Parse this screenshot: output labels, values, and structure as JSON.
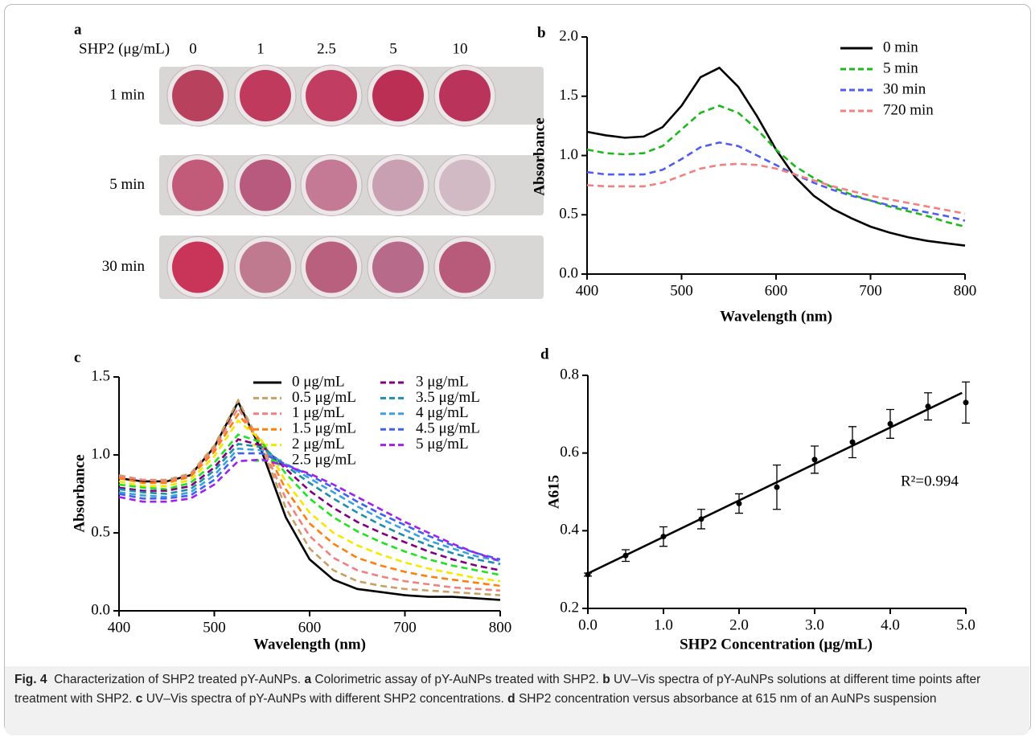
{
  "photo": {
    "panel_label": "a",
    "column_header": "SHP2 (μg/mL)",
    "columns": [
      "0",
      "1",
      "2.5",
      "5",
      "10"
    ],
    "rows": [
      "1 min",
      "5 min",
      "30 min"
    ]
  },
  "chart_data": [
    {
      "type": "line",
      "panel_label": "b",
      "xlabel": "Wavelength (nm)",
      "ylabel": "Absorbance",
      "x": [
        400,
        420,
        440,
        460,
        480,
        500,
        520,
        540,
        560,
        580,
        600,
        620,
        640,
        660,
        680,
        700,
        720,
        740,
        760,
        780,
        800
      ],
      "series": [
        {
          "name": "0 min",
          "color": "#000000",
          "line_style": "solid",
          "values": [
            1.2,
            1.17,
            1.15,
            1.16,
            1.24,
            1.42,
            1.66,
            1.74,
            1.58,
            1.33,
            1.05,
            0.82,
            0.66,
            0.55,
            0.47,
            0.4,
            0.35,
            0.31,
            0.28,
            0.26,
            0.24
          ]
        },
        {
          "name": "5 min",
          "color": "#1db81d",
          "line_style": "dashed",
          "values": [
            1.05,
            1.02,
            1.01,
            1.02,
            1.08,
            1.22,
            1.36,
            1.42,
            1.36,
            1.22,
            1.05,
            0.91,
            0.81,
            0.73,
            0.67,
            0.62,
            0.57,
            0.53,
            0.49,
            0.44,
            0.4
          ]
        },
        {
          "name": "30 min",
          "color": "#4f5cf0",
          "line_style": "dashed",
          "values": [
            0.86,
            0.84,
            0.84,
            0.84,
            0.88,
            0.97,
            1.07,
            1.11,
            1.08,
            1.0,
            0.92,
            0.84,
            0.77,
            0.71,
            0.66,
            0.62,
            0.58,
            0.55,
            0.52,
            0.49,
            0.45
          ]
        },
        {
          "name": "720 min",
          "color": "#f28080",
          "line_style": "dashed",
          "values": [
            0.75,
            0.74,
            0.74,
            0.74,
            0.77,
            0.83,
            0.89,
            0.92,
            0.93,
            0.92,
            0.89,
            0.84,
            0.79,
            0.74,
            0.7,
            0.66,
            0.63,
            0.6,
            0.57,
            0.54,
            0.51
          ]
        }
      ],
      "xlim": [
        400,
        800
      ],
      "ylim": [
        0,
        2
      ],
      "xticks": [
        400,
        500,
        600,
        700,
        800
      ],
      "yticks": [
        {
          "value": 0,
          "label": "0.0"
        },
        0.5,
        {
          "value": 1,
          "label": "1.0"
        },
        1.5,
        {
          "value": 2,
          "label": "2.0"
        }
      ]
    },
    {
      "type": "line",
      "panel_label": "c",
      "xlabel": "Wavelength (nm)",
      "ylabel": "Absorbance",
      "x": [
        400,
        425,
        450,
        475,
        500,
        525,
        550,
        575,
        600,
        625,
        650,
        675,
        700,
        725,
        750,
        775,
        800
      ],
      "series": [
        {
          "name": "0 μg/mL",
          "color": "#000000",
          "line_style": "solid",
          "values": [
            0.85,
            0.83,
            0.83,
            0.87,
            1.05,
            1.34,
            1.02,
            0.6,
            0.33,
            0.2,
            0.14,
            0.12,
            0.1,
            0.09,
            0.09,
            0.08,
            0.07
          ]
        },
        {
          "name": "0.5 μg/mL",
          "color": "#c8a064",
          "line_style": "dashed",
          "values": [
            0.87,
            0.84,
            0.84,
            0.88,
            1.06,
            1.35,
            1.05,
            0.66,
            0.4,
            0.26,
            0.19,
            0.16,
            0.14,
            0.13,
            0.12,
            0.11,
            0.1
          ]
        },
        {
          "name": "1 μg/mL",
          "color": "#f28080",
          "line_style": "dashed",
          "values": [
            0.86,
            0.84,
            0.83,
            0.87,
            1.04,
            1.3,
            1.06,
            0.72,
            0.48,
            0.34,
            0.26,
            0.22,
            0.19,
            0.17,
            0.15,
            0.14,
            0.13
          ]
        },
        {
          "name": "1.5 μg/mL",
          "color": "#ff7f0e",
          "line_style": "dashed",
          "values": [
            0.85,
            0.82,
            0.82,
            0.86,
            1.02,
            1.26,
            1.08,
            0.78,
            0.56,
            0.43,
            0.34,
            0.29,
            0.25,
            0.22,
            0.2,
            0.18,
            0.16
          ]
        },
        {
          "name": "2 μg/mL",
          "color": "#f5e800",
          "line_style": "dashed",
          "values": [
            0.83,
            0.8,
            0.8,
            0.84,
            0.99,
            1.22,
            1.09,
            0.83,
            0.63,
            0.5,
            0.42,
            0.36,
            0.31,
            0.27,
            0.24,
            0.21,
            0.19
          ]
        },
        {
          "name": "2.5 μg/mL",
          "color": "#22e022",
          "line_style": "dashed",
          "values": [
            0.81,
            0.79,
            0.78,
            0.82,
            0.95,
            1.13,
            1.08,
            0.88,
            0.72,
            0.6,
            0.51,
            0.44,
            0.38,
            0.33,
            0.29,
            0.26,
            0.23
          ]
        },
        {
          "name": "3 μg/mL",
          "color": "#800080",
          "line_style": "dashed",
          "values": [
            0.79,
            0.77,
            0.77,
            0.8,
            0.92,
            1.1,
            1.06,
            0.91,
            0.77,
            0.66,
            0.57,
            0.5,
            0.44,
            0.38,
            0.33,
            0.29,
            0.26
          ]
        },
        {
          "name": "3.5 μg/mL",
          "color": "#1f8ea8",
          "line_style": "dashed",
          "values": [
            0.78,
            0.76,
            0.75,
            0.78,
            0.9,
            1.07,
            1.05,
            0.93,
            0.82,
            0.72,
            0.63,
            0.55,
            0.48,
            0.42,
            0.37,
            0.33,
            0.3
          ]
        },
        {
          "name": "4 μg/mL",
          "color": "#3aa0e0",
          "line_style": "dashed",
          "values": [
            0.76,
            0.74,
            0.73,
            0.76,
            0.87,
            1.04,
            1.03,
            0.94,
            0.85,
            0.76,
            0.67,
            0.59,
            0.52,
            0.45,
            0.4,
            0.35,
            0.32
          ]
        },
        {
          "name": "4.5 μg/mL",
          "color": "#4060f0",
          "line_style": "dashed",
          "values": [
            0.75,
            0.72,
            0.72,
            0.74,
            0.84,
            1.01,
            1.01,
            0.94,
            0.87,
            0.79,
            0.7,
            0.62,
            0.55,
            0.48,
            0.42,
            0.37,
            0.33
          ]
        },
        {
          "name": "5 μg/mL",
          "color": "#a020f0",
          "line_style": "dashed",
          "values": [
            0.73,
            0.7,
            0.7,
            0.72,
            0.81,
            0.96,
            0.97,
            0.93,
            0.88,
            0.81,
            0.73,
            0.65,
            0.57,
            0.5,
            0.43,
            0.37,
            0.32
          ]
        }
      ],
      "xlim": [
        400,
        800
      ],
      "ylim": [
        0,
        1.5
      ],
      "xticks": [
        400,
        500,
        600,
        700,
        800
      ],
      "yticks": [
        {
          "value": 0,
          "label": "0.0"
        },
        0.5,
        {
          "value": 1,
          "label": "1.0"
        },
        1.5
      ]
    },
    {
      "type": "scatter",
      "panel_label": "d",
      "xlabel": "SHP2 Concentration (μg/mL)",
      "ylabel": "A615",
      "x": [
        0,
        0.5,
        1,
        1.5,
        2,
        2.5,
        3,
        3.5,
        4,
        4.5,
        5
      ],
      "values": [
        0.287,
        0.336,
        0.385,
        0.43,
        0.47,
        0.512,
        0.583,
        0.628,
        0.675,
        0.72,
        0.73
      ],
      "errors": [
        0.004,
        0.015,
        0.025,
        0.025,
        0.025,
        0.057,
        0.035,
        0.04,
        0.037,
        0.035,
        0.053
      ],
      "color": "#000000",
      "fit": {
        "x": [
          0,
          4.95
        ],
        "values": [
          0.29,
          0.755
        ]
      },
      "annotation": "R²=0.994",
      "xlim": [
        0,
        5
      ],
      "ylim": [
        0.2,
        0.8
      ],
      "xticks": [
        {
          "value": 0,
          "label": "0.0"
        },
        {
          "value": 1,
          "label": "1.0"
        },
        {
          "value": 2,
          "label": "2.0"
        },
        {
          "value": 3,
          "label": "3.0"
        },
        {
          "value": 4,
          "label": "4.0"
        },
        {
          "value": 5,
          "label": "5.0"
        }
      ],
      "yticks": [
        0.2,
        0.4,
        0.6,
        0.8
      ]
    }
  ],
  "caption": {
    "figure": "Fig. 4",
    "title": "Characterization of SHP2 treated pY-AuNPs.",
    "parts": [
      {
        "letter": "a",
        "text": "Colorimetric assay of pY-AuNPs treated with SHP2."
      },
      {
        "letter": "b",
        "text": "UV–Vis spectra of pY-AuNPs solutions at different time points after treatment with SHP2."
      },
      {
        "letter": "c",
        "text": "UV–Vis spectra of pY-AuNPs with different SHP2 concentrations."
      },
      {
        "letter": "d",
        "text": "SHP2 concentration versus absorbance at 615 nm of an AuNPs suspension"
      }
    ]
  }
}
